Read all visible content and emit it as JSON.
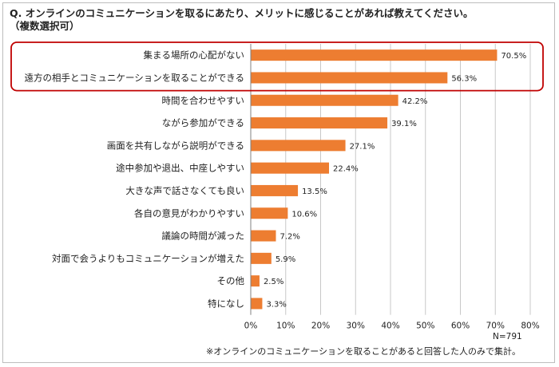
{
  "title_line1": "Q. オンラインのコミュニケーションを取るにあたり、メリットに感じることがあれば教えてください。",
  "title_line2": "（複数選択可）",
  "sample_size": "N=791",
  "footnote": "※オンラインのコミュニケーションを取ることがあると回答した人のみで集計。",
  "colors": {
    "bar": "#ED7D31",
    "highlight_box": "#C00000",
    "grid": "#c8c8c8",
    "axis": "#808080"
  },
  "chart_data": {
    "type": "bar",
    "orientation": "horizontal",
    "categories": [
      "集まる場所の心配がない",
      "遠方の相手とコミュニケーションを取ることができる",
      "時間を合わせやすい",
      "ながら参加ができる",
      "画面を共有しながら説明ができる",
      "途中参加や退出、中座しやすい",
      "大きな声で話さなくても良い",
      "各自の意見がわかりやすい",
      "議論の時間が減った",
      "対面で会うよりもコミュニケーションが増えた",
      "その他",
      "特になし"
    ],
    "values": [
      70.5,
      56.3,
      42.2,
      39.1,
      27.1,
      22.4,
      13.5,
      10.6,
      7.2,
      5.9,
      2.5,
      3.3
    ],
    "value_labels": [
      "70.5%",
      "56.3%",
      "42.2%",
      "39.1%",
      "27.1%",
      "22.4%",
      "13.5%",
      "10.6%",
      "7.2%",
      "5.9%",
      "2.5%",
      "3.3%"
    ],
    "xlim": [
      0,
      80
    ],
    "xticks": [
      0,
      10,
      20,
      30,
      40,
      50,
      60,
      70,
      80
    ],
    "xtick_labels": [
      "0%",
      "10%",
      "20%",
      "30%",
      "40%",
      "50%",
      "60%",
      "70%",
      "80%"
    ],
    "grid": true,
    "highlighted_categories": [
      0,
      1
    ]
  }
}
